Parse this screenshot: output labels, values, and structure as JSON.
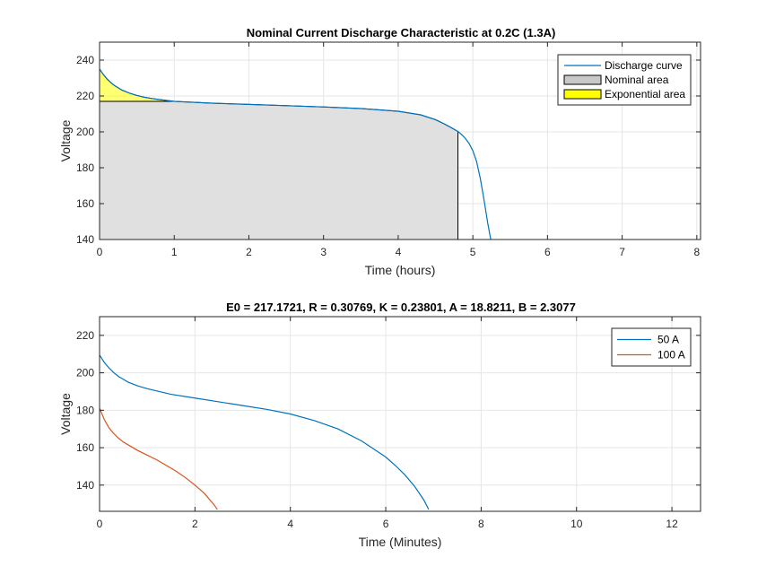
{
  "chart_data": [
    {
      "type": "area",
      "title": "Nominal Current Discharge Characteristic at 0.2C (1.3A)",
      "xlabel": "Time (hours)",
      "ylabel": "Voltage",
      "xlim": [
        0,
        8.05
      ],
      "ylim": [
        140,
        250
      ],
      "xticks": [
        "0",
        "1",
        "2",
        "3",
        "4",
        "5",
        "6",
        "7",
        "8"
      ],
      "yticks": [
        "140",
        "160",
        "180",
        "200",
        "220",
        "240"
      ],
      "grid": true,
      "legend_position": "top-right",
      "legend": [
        "Discharge curve",
        "Nominal area",
        "Exponential area"
      ],
      "colors": {
        "discharge": "#0072BD",
        "nominal": "#E0E0E0",
        "exponential": "#FFFF00"
      },
      "series": [
        {
          "name": "Discharge curve",
          "x": [
            0,
            0.05,
            0.1,
            0.15,
            0.2,
            0.3,
            0.4,
            0.5,
            0.6,
            0.7,
            0.8,
            1.0,
            1.5,
            2.0,
            2.5,
            3.0,
            3.5,
            4.0,
            4.3,
            4.5,
            4.6,
            4.7,
            4.8,
            4.85,
            4.9,
            4.95,
            5.0,
            5.05,
            5.1,
            5.15,
            5.2,
            5.24
          ],
          "y": [
            235,
            232,
            229.5,
            227.5,
            225.8,
            223.3,
            221.6,
            220.3,
            219.3,
            218.6,
            218,
            217,
            216,
            215.3,
            214.6,
            213.9,
            213,
            211.5,
            209.5,
            206.8,
            204.8,
            202.6,
            200.2,
            198.5,
            196.3,
            193.5,
            189.5,
            183.5,
            174,
            162,
            149,
            140
          ]
        },
        {
          "name": "Nominal area",
          "x": [
            0,
            1.0,
            1.5,
            2.0,
            2.5,
            3.0,
            3.5,
            4.0,
            4.3,
            4.5,
            4.6,
            4.7,
            4.8
          ],
          "y": [
            217,
            217,
            216,
            215.3,
            214.6,
            213.9,
            213,
            211.5,
            209.5,
            206.8,
            204.8,
            202.6,
            200.2
          ]
        },
        {
          "name": "Exponential area",
          "x": [
            0,
            0.05,
            0.1,
            0.15,
            0.2,
            0.3,
            0.4,
            0.5,
            0.6,
            0.7,
            0.8,
            1.0
          ],
          "y": [
            235,
            232,
            229.5,
            227.5,
            225.8,
            223.3,
            221.6,
            220.3,
            219.3,
            218.6,
            218,
            217
          ]
        }
      ]
    },
    {
      "type": "line",
      "title": "E0 = 217.1721, R = 0.30769, K = 0.23801, A = 18.8211, B = 2.3077",
      "xlabel": "Time (Minutes)",
      "ylabel": "Voltage",
      "xlim": [
        0,
        12.6
      ],
      "ylim": [
        126,
        230
      ],
      "xticks": [
        "0",
        "2",
        "4",
        "6",
        "8",
        "10",
        "12"
      ],
      "yticks": [
        "140",
        "160",
        "180",
        "200",
        "220"
      ],
      "grid": true,
      "legend_position": "top-right",
      "legend": [
        "50 A",
        "100 A"
      ],
      "series": [
        {
          "name": "50 A",
          "color": "#0072BD",
          "x": [
            0,
            0.1,
            0.2,
            0.3,
            0.4,
            0.5,
            0.6,
            0.8,
            1.0,
            1.5,
            2.0,
            2.5,
            3.0,
            3.5,
            4.0,
            4.5,
            5.0,
            5.5,
            6.0,
            6.2,
            6.4,
            6.6,
            6.8,
            6.9
          ],
          "y": [
            209.5,
            205.5,
            202.5,
            200,
            198,
            196.5,
            195,
            193,
            191.5,
            188.5,
            186.5,
            184.5,
            182.5,
            180.5,
            178,
            174.5,
            170,
            163.5,
            155,
            150.5,
            145.5,
            139.5,
            132,
            127
          ]
        },
        {
          "name": "100 A",
          "color": "#D95319",
          "x": [
            0,
            0.1,
            0.2,
            0.3,
            0.4,
            0.5,
            0.6,
            0.8,
            1.0,
            1.2,
            1.4,
            1.6,
            1.8,
            2.0,
            2.2,
            2.4,
            2.47
          ],
          "y": [
            181,
            175,
            170.5,
            167.5,
            165,
            163,
            161.5,
            158.5,
            156,
            153.5,
            150.5,
            147.5,
            144,
            140,
            135.5,
            129.5,
            127
          ]
        }
      ]
    }
  ]
}
